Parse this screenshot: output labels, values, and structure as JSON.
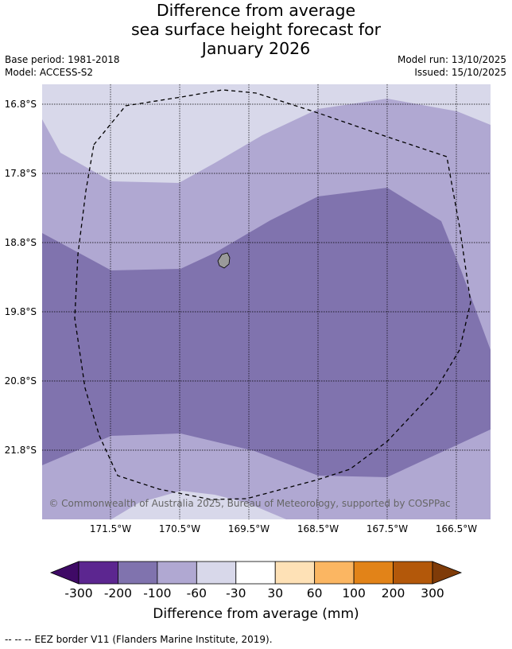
{
  "title": {
    "line1": "Difference from average",
    "line2": "sea surface height forecast for",
    "line3": "January 2026"
  },
  "meta": {
    "base_period": "Base period: 1981-2018",
    "model": "Model: ACCESS-S2",
    "model_run": "Model run: 13/10/2025",
    "issued": "Issued: 15/10/2025"
  },
  "map": {
    "lat_labels": [
      "16.8°S",
      "17.8°S",
      "18.8°S",
      "19.8°S",
      "20.8°S",
      "21.8°S"
    ],
    "lon_labels": [
      "171.5°W",
      "170.5°W",
      "169.5°W",
      "168.5°W",
      "167.5°W",
      "166.5°W"
    ],
    "copyright": "© Commonwealth of Australia 2025, Bureau of Meteorology, supported by COSPPac",
    "colors": {
      "light": "#d8d8ea",
      "medium": "#b0a8d2",
      "dark": "#8073ae",
      "island": "#9a9a9a"
    }
  },
  "colorbar": {
    "ticks": [
      "-300",
      "-200",
      "-100",
      "-60",
      "-30",
      "30",
      "60",
      "100",
      "200",
      "300"
    ],
    "colors": [
      "#5c2690",
      "#8073ae",
      "#b0a8d2",
      "#d8d8ea",
      "#ffffff",
      "#fee1b6",
      "#fbb662",
      "#e28318",
      "#b3580a"
    ],
    "low_color": "#3f0a66",
    "high_color": "#7f3b08",
    "label": "Difference from average (mm)"
  },
  "footer": {
    "legend_symbol": "--  --  --",
    "legend_text": "EEZ border V11 (Flanders Marine Institute, 2019)."
  }
}
